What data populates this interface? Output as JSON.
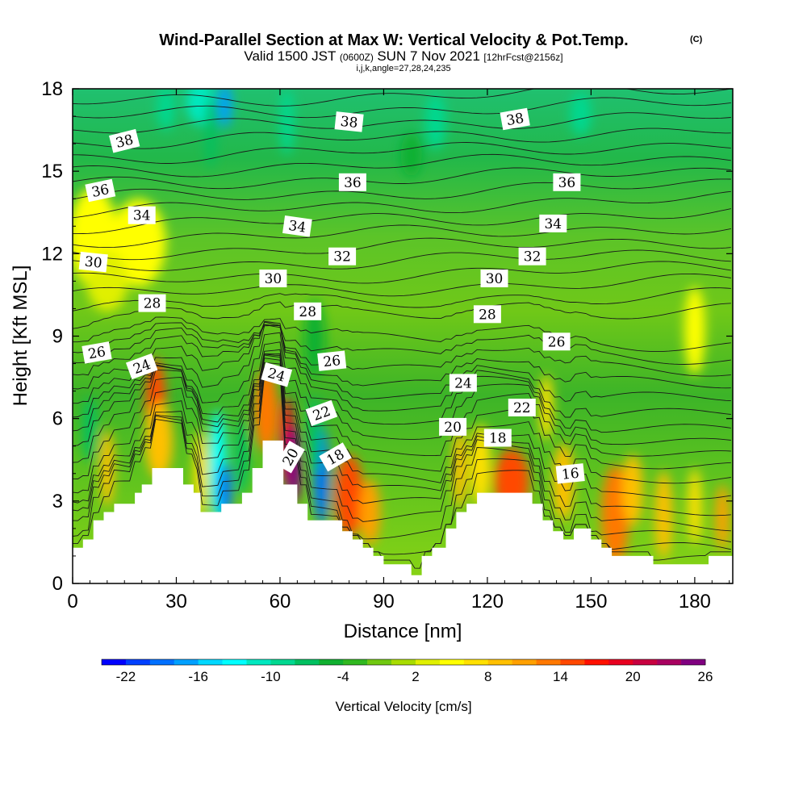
{
  "chart_data": {
    "type": "heatmap",
    "title": "Wind-Parallel Section at Max W: Vertical Velocity & Pot.Temp.",
    "title_mark": "(C)",
    "subtitle": {
      "valid": "Valid 1500 JST",
      "utc": "(0600Z)",
      "date": "SUN 7 Nov 2021",
      "fcst": "[12hrFcst@2156z]",
      "indices": "i,j,k,angle=27,28,24,235"
    },
    "xlabel": "Distance [nm]",
    "ylabel": "Height [Kft MSL]",
    "xlim": [
      0,
      191
    ],
    "ylim": [
      0,
      18
    ],
    "xticks": [
      0,
      30,
      60,
      90,
      120,
      150,
      180
    ],
    "yticks": [
      0,
      3,
      6,
      9,
      12,
      15,
      18
    ],
    "colorbar": {
      "label": "Vertical Velocity [cm/s]",
      "tick_labels": [
        "-22",
        "-16",
        "-10",
        "-4",
        "2",
        "8",
        "14",
        "20",
        "26"
      ],
      "tick_positions": [
        1,
        4,
        7,
        10,
        13,
        16,
        19,
        22,
        25
      ],
      "colors": [
        "#0000ff",
        "#0040ff",
        "#0070ff",
        "#00a0ff",
        "#00d8ff",
        "#00ffff",
        "#00e8c0",
        "#00d890",
        "#00c060",
        "#10b030",
        "#30b820",
        "#70c810",
        "#a8dc00",
        "#e0f000",
        "#ffff00",
        "#ffe000",
        "#ffc000",
        "#ffa000",
        "#ff7800",
        "#ff4800",
        "#ff1000",
        "#e80020",
        "#c80040",
        "#a80060",
        "#800080"
      ]
    },
    "terrain": [
      [
        0,
        1.3
      ],
      [
        3,
        1.3
      ],
      [
        3,
        1.6
      ],
      [
        6,
        1.6
      ],
      [
        6,
        2.3
      ],
      [
        9,
        2.3
      ],
      [
        9,
        2.6
      ],
      [
        12,
        2.6
      ],
      [
        12,
        2.9
      ],
      [
        18,
        2.9
      ],
      [
        18,
        3.3
      ],
      [
        20,
        3.3
      ],
      [
        20,
        3.6
      ],
      [
        23,
        3.6
      ],
      [
        23,
        4.2
      ],
      [
        32,
        4.2
      ],
      [
        32,
        3.6
      ],
      [
        35,
        3.6
      ],
      [
        35,
        3.3
      ],
      [
        37,
        3.3
      ],
      [
        37,
        2.6
      ],
      [
        43,
        2.6
      ],
      [
        43,
        2.9
      ],
      [
        49,
        2.9
      ],
      [
        49,
        3.3
      ],
      [
        52,
        3.3
      ],
      [
        52,
        4.2
      ],
      [
        55,
        4.2
      ],
      [
        55,
        5.2
      ],
      [
        61,
        5.2
      ],
      [
        61,
        3.6
      ],
      [
        65,
        3.6
      ],
      [
        65,
        2.9
      ],
      [
        68,
        2.9
      ],
      [
        68,
        2.3
      ],
      [
        78,
        2.3
      ],
      [
        78,
        1.9
      ],
      [
        81,
        1.9
      ],
      [
        81,
        1.6
      ],
      [
        84,
        1.6
      ],
      [
        84,
        1.3
      ],
      [
        87,
        1.3
      ],
      [
        87,
        1.0
      ],
      [
        90,
        1.0
      ],
      [
        90,
        0.7
      ],
      [
        98,
        0.7
      ],
      [
        98,
        0.3
      ],
      [
        101,
        0.3
      ],
      [
        101,
        1.0
      ],
      [
        104,
        1.0
      ],
      [
        104,
        1.3
      ],
      [
        108,
        1.3
      ],
      [
        108,
        2.0
      ],
      [
        111,
        2.0
      ],
      [
        111,
        2.6
      ],
      [
        114,
        2.6
      ],
      [
        114,
        2.9
      ],
      [
        117,
        2.9
      ],
      [
        117,
        3.3
      ],
      [
        133,
        3.3
      ],
      [
        133,
        2.9
      ],
      [
        136,
        2.9
      ],
      [
        136,
        2.3
      ],
      [
        139,
        2.3
      ],
      [
        139,
        1.9
      ],
      [
        142,
        1.9
      ],
      [
        142,
        1.6
      ],
      [
        145,
        1.6
      ],
      [
        145,
        2.0
      ],
      [
        150,
        2.0
      ],
      [
        150,
        1.6
      ],
      [
        153,
        1.6
      ],
      [
        153,
        1.3
      ],
      [
        156,
        1.3
      ],
      [
        156,
        1.0
      ],
      [
        168,
        1.0
      ],
      [
        168,
        0.7
      ],
      [
        180,
        0.7
      ],
      [
        180,
        0.7
      ],
      [
        184,
        0.7
      ],
      [
        184,
        1.0
      ],
      [
        191,
        1.0
      ]
    ],
    "theta_levels": [
      16,
      18,
      20,
      22,
      24,
      26,
      28,
      30,
      32,
      34,
      36,
      38
    ],
    "contour_labels": [
      {
        "text": "38",
        "x": 15,
        "y": 16.1,
        "angle": -14
      },
      {
        "text": "38",
        "x": 80,
        "y": 16.8,
        "angle": 6
      },
      {
        "text": "38",
        "x": 128,
        "y": 16.9,
        "angle": -10
      },
      {
        "text": "36",
        "x": 8,
        "y": 14.3,
        "angle": -12
      },
      {
        "text": "36",
        "x": 81,
        "y": 14.6,
        "angle": 0
      },
      {
        "text": "36",
        "x": 143,
        "y": 14.6,
        "angle": 0
      },
      {
        "text": "34",
        "x": 20,
        "y": 13.4,
        "angle": 0
      },
      {
        "text": "34",
        "x": 65,
        "y": 13.0,
        "angle": 8
      },
      {
        "text": "34",
        "x": 139,
        "y": 13.1,
        "angle": 0
      },
      {
        "text": "30",
        "x": 6,
        "y": 11.7,
        "angle": 6
      },
      {
        "text": "32",
        "x": 78,
        "y": 11.9,
        "angle": 0
      },
      {
        "text": "32",
        "x": 133,
        "y": 11.9,
        "angle": 0
      },
      {
        "text": "30",
        "x": 58,
        "y": 11.1,
        "angle": 0
      },
      {
        "text": "30",
        "x": 122,
        "y": 11.1,
        "angle": 0
      },
      {
        "text": "28",
        "x": 23,
        "y": 10.2,
        "angle": 0
      },
      {
        "text": "28",
        "x": 68,
        "y": 9.9,
        "angle": 0
      },
      {
        "text": "28",
        "x": 120,
        "y": 9.8,
        "angle": 0
      },
      {
        "text": "26",
        "x": 7,
        "y": 8.4,
        "angle": -10
      },
      {
        "text": "26",
        "x": 75,
        "y": 8.1,
        "angle": -6
      },
      {
        "text": "26",
        "x": 140,
        "y": 8.8,
        "angle": 0
      },
      {
        "text": "24",
        "x": 20,
        "y": 7.9,
        "angle": -20
      },
      {
        "text": "24",
        "x": 59,
        "y": 7.6,
        "angle": 16
      },
      {
        "text": "24",
        "x": 113,
        "y": 7.3,
        "angle": 0
      },
      {
        "text": "22",
        "x": 72,
        "y": 6.2,
        "angle": -20
      },
      {
        "text": "22",
        "x": 130,
        "y": 6.4,
        "angle": 0
      },
      {
        "text": "20",
        "x": 110,
        "y": 5.7,
        "angle": 0
      },
      {
        "text": "18",
        "x": 123,
        "y": 5.3,
        "angle": 0
      },
      {
        "text": "20",
        "x": 63,
        "y": 4.6,
        "angle": -60
      },
      {
        "text": "18",
        "x": 76,
        "y": 4.6,
        "angle": -30
      },
      {
        "text": "16",
        "x": 144,
        "y": 4.0,
        "angle": -6
      }
    ],
    "velocity_blobs": [
      {
        "x": 24,
        "y": 6.4,
        "rx": 3,
        "ry": 1.8,
        "v": 14
      },
      {
        "x": 25,
        "y": 5.2,
        "rx": 4,
        "ry": 1.4,
        "v": 9
      },
      {
        "x": 10,
        "y": 4.2,
        "rx": 2,
        "ry": 1.4,
        "v": 8
      },
      {
        "x": 37,
        "y": 4.0,
        "rx": 2,
        "ry": 1.6,
        "v": 7
      },
      {
        "x": 42,
        "y": 4.3,
        "rx": 2.5,
        "ry": 2,
        "v": -13
      },
      {
        "x": 44,
        "y": 3.4,
        "rx": 2,
        "ry": 1,
        "v": -19
      },
      {
        "x": 49,
        "y": 4.6,
        "rx": 2,
        "ry": 1.4,
        "v": -7
      },
      {
        "x": 56,
        "y": 6.3,
        "rx": 3.5,
        "ry": 1.5,
        "v": 12
      },
      {
        "x": 62,
        "y": 5.2,
        "rx": 2,
        "ry": 1.6,
        "v": 19
      },
      {
        "x": 64,
        "y": 4.3,
        "rx": 2.2,
        "ry": 1.4,
        "v": 24
      },
      {
        "x": 72,
        "y": 3.9,
        "rx": 2.2,
        "ry": 1.8,
        "v": -20
      },
      {
        "x": 70,
        "y": 5.4,
        "rx": 2,
        "ry": 1.4,
        "v": -8
      },
      {
        "x": 80,
        "y": 3.2,
        "rx": 4,
        "ry": 1.5,
        "v": 14
      },
      {
        "x": 86,
        "y": 2.6,
        "rx": 3,
        "ry": 1.2,
        "v": 11
      },
      {
        "x": 70,
        "y": 8.9,
        "rx": 3,
        "ry": 1.4,
        "v": -6
      },
      {
        "x": 112,
        "y": 4.2,
        "rx": 2,
        "ry": 1.5,
        "v": 9
      },
      {
        "x": 118,
        "y": 4.3,
        "rx": 3,
        "ry": 1.5,
        "v": 7
      },
      {
        "x": 127,
        "y": 3.7,
        "rx": 5,
        "ry": 1.2,
        "v": 15
      },
      {
        "x": 142,
        "y": 3.7,
        "rx": 3,
        "ry": 1.4,
        "v": 9
      },
      {
        "x": 137,
        "y": 6.4,
        "rx": 2,
        "ry": 1.2,
        "v": 6
      },
      {
        "x": 157,
        "y": 2.5,
        "rx": 4,
        "ry": 1.8,
        "v": 13
      },
      {
        "x": 171,
        "y": 2.5,
        "rx": 2.5,
        "ry": 1.6,
        "v": 9
      },
      {
        "x": 162,
        "y": 3.4,
        "rx": 3,
        "ry": 1.3,
        "v": 8
      },
      {
        "x": 180,
        "y": 2.8,
        "rx": 2,
        "ry": 1.4,
        "v": 7
      },
      {
        "x": 188,
        "y": 2.4,
        "rx": 2,
        "ry": 1.2,
        "v": 10
      },
      {
        "x": 5,
        "y": 5.6,
        "rx": 2,
        "ry": 1.2,
        "v": -7
      },
      {
        "x": 180,
        "y": 9.2,
        "rx": 3,
        "ry": 1.6,
        "v": 5
      },
      {
        "x": 6,
        "y": 12.6,
        "rx": 7,
        "ry": 1.8,
        "v": 4
      },
      {
        "x": 19,
        "y": 12.4,
        "rx": 8,
        "ry": 1.6,
        "v": 4
      },
      {
        "x": 10,
        "y": 11,
        "rx": 6,
        "ry": 1.1,
        "v": 2
      },
      {
        "x": 37,
        "y": 17.5,
        "rx": 4,
        "ry": 0.8,
        "v": -12
      },
      {
        "x": 44,
        "y": 17.4,
        "rx": 2,
        "ry": 0.8,
        "v": -17
      },
      {
        "x": 27,
        "y": 17.3,
        "rx": 2.5,
        "ry": 0.8,
        "v": -9
      },
      {
        "x": 62,
        "y": 16.8,
        "rx": 2,
        "ry": 1.2,
        "v": -10
      },
      {
        "x": 105,
        "y": 16.8,
        "rx": 3,
        "ry": 1,
        "v": -9
      },
      {
        "x": 147,
        "y": 17.1,
        "rx": 3,
        "ry": 0.8,
        "v": -9
      },
      {
        "x": 98,
        "y": 15.6,
        "rx": 3,
        "ry": 0.8,
        "v": -6
      },
      {
        "x": 40,
        "y": 16.4,
        "rx": 1.5,
        "ry": 1.3,
        "v": -8
      }
    ]
  }
}
